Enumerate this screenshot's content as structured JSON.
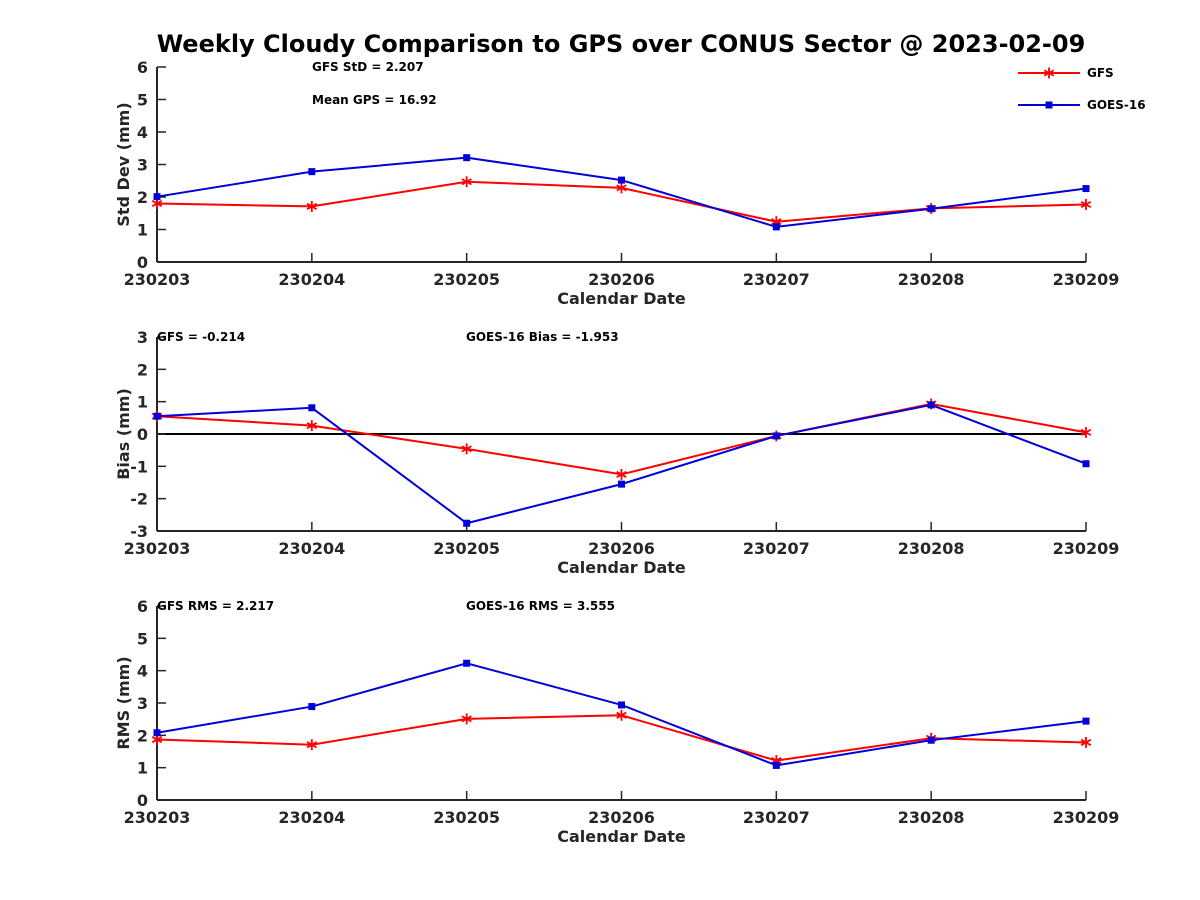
{
  "title": "Weekly Cloudy Comparison to GPS over CONUS Sector @ 2023-02-09",
  "legend": {
    "placement": "top-right"
  },
  "colors": {
    "GFS": "#ff0000",
    "GOES-16": "#0000d9",
    "zero_line": "#000000",
    "axis": "#262626"
  },
  "chart_data": [
    {
      "type": "line",
      "categories": [
        "230203",
        "230204",
        "230205",
        "230206",
        "230207",
        "230208",
        "230209"
      ],
      "xlabel": "Calendar Date",
      "ylabel": "Std Dev (mm)",
      "ylim": [
        0,
        6
      ],
      "yticks": [
        "0",
        "1",
        "2",
        "3",
        "4",
        "5",
        "6"
      ],
      "grid": false,
      "annotations": [
        "GFS StD = 2.207",
        "Mean GPS = 16.92"
      ],
      "series": [
        {
          "name": "GFS",
          "marker": "asterisk",
          "values": [
            1.8,
            1.71,
            2.47,
            2.28,
            1.24,
            1.65,
            1.77
          ]
        },
        {
          "name": "GOES-16",
          "marker": "square",
          "values": [
            2.01,
            2.78,
            3.21,
            2.52,
            1.08,
            1.64,
            2.26
          ]
        }
      ]
    },
    {
      "type": "line",
      "categories": [
        "230203",
        "230204",
        "230205",
        "230206",
        "230207",
        "230208",
        "230209"
      ],
      "xlabel": "Calendar Date",
      "ylabel": "Bias (mm)",
      "ylim": [
        -3,
        3
      ],
      "yticks": [
        "-3",
        "-2",
        "-1",
        "0",
        "1",
        "2",
        "3"
      ],
      "grid": false,
      "reference_line": 0,
      "annotations": [
        "GFS = -0.214",
        "GOES-16 Bias  = -1.953"
      ],
      "series": [
        {
          "name": "GFS",
          "marker": "asterisk",
          "values": [
            0.55,
            0.26,
            -0.46,
            -1.25,
            -0.06,
            0.93,
            0.05
          ]
        },
        {
          "name": "GOES-16",
          "marker": "square",
          "values": [
            0.55,
            0.81,
            -2.76,
            -1.55,
            -0.06,
            0.9,
            -0.92
          ]
        }
      ]
    },
    {
      "type": "line",
      "categories": [
        "230203",
        "230204",
        "230205",
        "230206",
        "230207",
        "230208",
        "230209"
      ],
      "xlabel": "Calendar Date",
      "ylabel": "RMS (mm)",
      "ylim": [
        0,
        6
      ],
      "yticks": [
        "0",
        "1",
        "2",
        "3",
        "4",
        "5",
        "6"
      ],
      "grid": false,
      "annotations": [
        "GFS RMS = 2.217",
        "GOES-16 RMS = 3.555"
      ],
      "series": [
        {
          "name": "GFS",
          "marker": "asterisk",
          "values": [
            1.87,
            1.71,
            2.51,
            2.62,
            1.22,
            1.91,
            1.78
          ]
        },
        {
          "name": "GOES-16",
          "marker": "square",
          "values": [
            2.08,
            2.89,
            4.23,
            2.94,
            1.07,
            1.85,
            2.44
          ]
        }
      ]
    }
  ]
}
